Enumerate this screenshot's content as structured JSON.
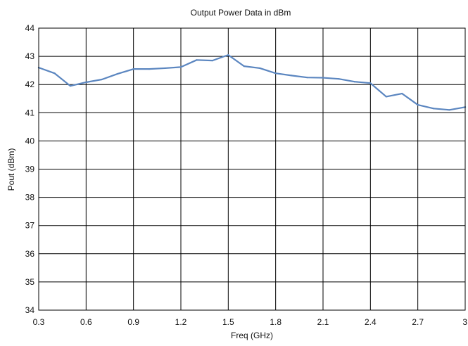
{
  "chart_data": {
    "type": "line",
    "title": "Output Power Data in dBm",
    "xlabel": "Freq (GHz)",
    "ylabel": "Pout (dBm)",
    "xlim": [
      0.3,
      3.0
    ],
    "ylim": [
      34,
      44
    ],
    "x_ticks": [
      "0.3",
      "0.6",
      "0.9",
      "1.2",
      "1.5",
      "1.8",
      "2.1",
      "2.4",
      "2.7",
      "3"
    ],
    "y_ticks": [
      "34",
      "35",
      "36",
      "37",
      "38",
      "39",
      "40",
      "41",
      "42",
      "43",
      "44"
    ],
    "grid": true,
    "legend": "none",
    "series": [
      {
        "color": "#5b86c0",
        "x": [
          0.3,
          0.4,
          0.5,
          0.6,
          0.7,
          0.8,
          0.9,
          1.0,
          1.1,
          1.2,
          1.3,
          1.4,
          1.5,
          1.6,
          1.7,
          1.8,
          1.9,
          2.0,
          2.1,
          2.2,
          2.3,
          2.4,
          2.5,
          2.6,
          2.7,
          2.8,
          2.9,
          3.0
        ],
        "y": [
          42.6,
          42.4,
          41.95,
          42.08,
          42.18,
          42.38,
          42.55,
          42.55,
          42.58,
          42.62,
          42.87,
          42.85,
          43.05,
          42.65,
          42.58,
          42.4,
          42.32,
          42.25,
          42.24,
          42.2,
          42.1,
          42.05,
          41.57,
          41.68,
          41.28,
          41.15,
          41.1,
          41.2
        ]
      }
    ]
  }
}
